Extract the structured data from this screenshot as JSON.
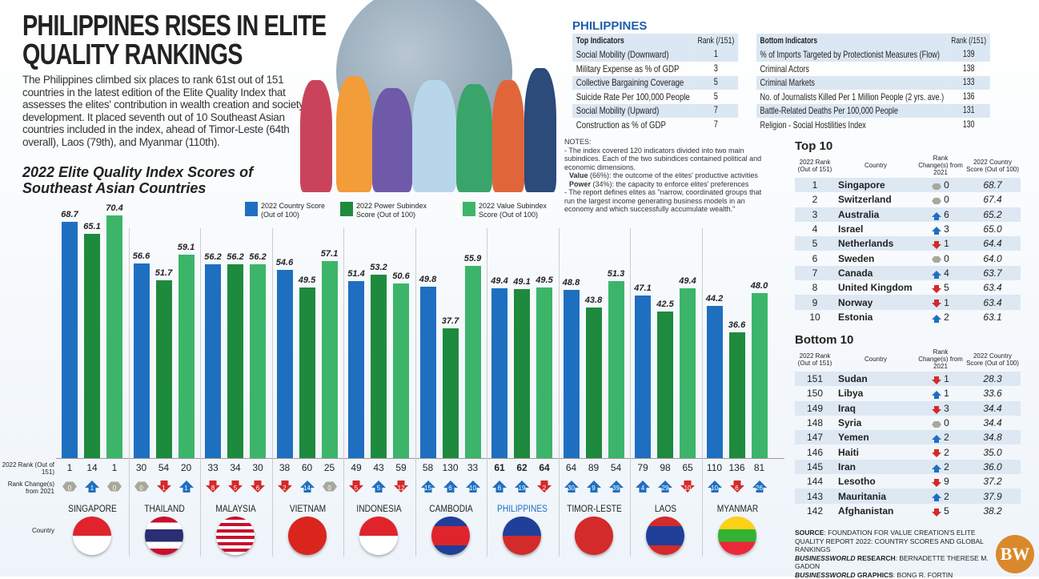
{
  "header": {
    "title": "PHILIPPINES RISES IN ELITE QUALITY RANKINGS",
    "description": "The Philippines climbed six places to rank 61st out of 151 countries in the latest edition of the Elite Quality Index that assesses the elites' contribution in wealth creation and society development. It placed seventh out of 10 Southeast Asian countries included in the index, ahead of Timor-Leste (64th overall), Laos (79th), and Myanmar (110th)."
  },
  "chart_data": {
    "type": "bar",
    "title": "2022 Elite Quality Index Scores of Southeast Asian Countries",
    "ylim": [
      0,
      75
    ],
    "grid": false,
    "legend_position": "top",
    "categories": [
      "SINGAPORE",
      "THAILAND",
      "MALAYSIA",
      "VIETNAM",
      "INDONESIA",
      "CAMBODIA",
      "PHILIPPINES",
      "TIMOR-LESTE",
      "LAOS",
      "MYANMAR"
    ],
    "series": [
      {
        "name": "2022 Country Score (Out of 100)",
        "color": "#1f6fc0",
        "values": [
          68.7,
          56.6,
          56.2,
          54.6,
          51.4,
          49.8,
          49.4,
          48.8,
          47.1,
          44.2
        ],
        "rank": [
          1,
          30,
          33,
          38,
          49,
          58,
          61,
          64,
          79,
          110
        ],
        "rank_change": [
          0,
          0,
          -8,
          -2,
          -5,
          15,
          6,
          30,
          4,
          10
        ]
      },
      {
        "name": "2022 Power Subindex Score (Out of 100)",
        "color": "#1e8a3e",
        "values": [
          65.1,
          51.7,
          56.2,
          49.5,
          53.2,
          37.7,
          49.1,
          43.8,
          42.5,
          36.6
        ],
        "rank": [
          14,
          54,
          34,
          60,
          43,
          130,
          62,
          89,
          98,
          136
        ],
        "rank_change": [
          1,
          -1,
          -5,
          14,
          5,
          6,
          19,
          9,
          29,
          -6
        ]
      },
      {
        "name": "2022 Value Subindex Score (Out of 100)",
        "color": "#3cb56a",
        "values": [
          70.4,
          59.1,
          56.2,
          57.1,
          50.6,
          55.9,
          49.5,
          51.3,
          49.4,
          48.0
        ],
        "rank": [
          1,
          20,
          30,
          25,
          59,
          33,
          64,
          54,
          65,
          81
        ],
        "rank_change": [
          0,
          1,
          -6,
          0,
          -12,
          10,
          -2,
          39,
          -10,
          26
        ]
      }
    ],
    "row_labels": {
      "rank": "2022 Rank (Out of 151)",
      "change": "Rank Change(s) from 2021",
      "country": "Country"
    }
  },
  "colors": {
    "up": "#1f6fc0",
    "down": "#d32a2a",
    "same": "#a8a89a",
    "highlight": "#1f6fc0"
  },
  "philippines": {
    "heading": "PHILIPPINES",
    "top": {
      "header": "Top Indicators",
      "rank_header": "Rank (/151)",
      "rows": [
        [
          "Social Mobility (Downward)",
          "1"
        ],
        [
          "Military Expense as % of GDP",
          "3"
        ],
        [
          "Collective Bargaining Coverage",
          "5"
        ],
        [
          "Suicide Rate Per 100,000 People",
          "5"
        ],
        [
          "Social Mobility (Upward)",
          "7"
        ],
        [
          "Construction as % of GDP",
          "7"
        ]
      ]
    },
    "bottom": {
      "header": "Bottom Indicators",
      "rank_header": "Rank (/151)",
      "rows": [
        [
          "% of Imports Targeted by Protectionist Measures (Flow)",
          "139"
        ],
        [
          "Criminal Actors",
          "138"
        ],
        [
          "Criminal Markets",
          "133"
        ],
        [
          "No. of Journalists Killed Per 1 Million People (2 yrs. ave.)",
          "136"
        ],
        [
          "Battle-Related Deaths Per 100,000 People",
          "131"
        ],
        [
          "Religion - Social Hostilities Index",
          "130"
        ]
      ]
    }
  },
  "notes": {
    "heading": "NOTES:",
    "n1": "- The index covered 120 indicators divided into two main subindices. Each of the two subindices contained political and economic dimensions.",
    "value_label": "Value",
    "value_text": " (66%): the outcome of the elites' productive activities",
    "power_label": "Power",
    "power_text": " (34%): the capacity to enforce elites' preferences",
    "n2": "- The report defines elites as \"narrow, coordinated groups that run the largest income generating business models in an economy and which successfully accumulate wealth.\""
  },
  "rank_tables": {
    "headers": [
      "2022 Rank (Out of 151)",
      "Country",
      "Rank Change(s) from 2021",
      "2022 Country Score (Out of 100)"
    ],
    "top10": {
      "title": "Top 10",
      "rows": [
        [
          1,
          "Singapore",
          0,
          "68.7"
        ],
        [
          2,
          "Switzerland",
          0,
          "67.4"
        ],
        [
          3,
          "Australia",
          6,
          "65.2"
        ],
        [
          4,
          "Israel",
          3,
          "65.0"
        ],
        [
          5,
          "Netherlands",
          -1,
          "64.4"
        ],
        [
          6,
          "Sweden",
          0,
          "64.0"
        ],
        [
          7,
          "Canada",
          4,
          "63.7"
        ],
        [
          8,
          "United Kingdom",
          -5,
          "63.4"
        ],
        [
          9,
          "Norway",
          -1,
          "63.4"
        ],
        [
          10,
          "Estonia",
          2,
          "63.1"
        ]
      ]
    },
    "bottom10": {
      "title": "Bottom 10",
      "rows": [
        [
          151,
          "Sudan",
          -1,
          "28.3"
        ],
        [
          150,
          "Libya",
          1,
          "33.6"
        ],
        [
          149,
          "Iraq",
          -3,
          "34.4"
        ],
        [
          148,
          "Syria",
          0,
          "34.4"
        ],
        [
          147,
          "Yemen",
          2,
          "34.8"
        ],
        [
          146,
          "Haiti",
          -2,
          "35.0"
        ],
        [
          145,
          "Iran",
          2,
          "36.0"
        ],
        [
          144,
          "Lesotho",
          -9,
          "37.2"
        ],
        [
          143,
          "Mauritania",
          2,
          "37.9"
        ],
        [
          142,
          "Afghanistan",
          -5,
          "38.2"
        ]
      ]
    }
  },
  "source": {
    "l1b": "SOURCE",
    "l1": ": FOUNDATION FOR VALUE CREATION'S ELITE QUALITY REPORT 2022: COUNTRY SCORES AND GLOBAL RANKINGS",
    "l2b": "BUSINESSWORLD",
    "l2m": " RESEARCH",
    "l2": ": BERNADETTE THERESE M. GADON",
    "l3b": "BUSINESSWORLD",
    "l3m": " GRAPHICS",
    "l3": ": BONG R. FORTIN",
    "logo": "BW"
  }
}
